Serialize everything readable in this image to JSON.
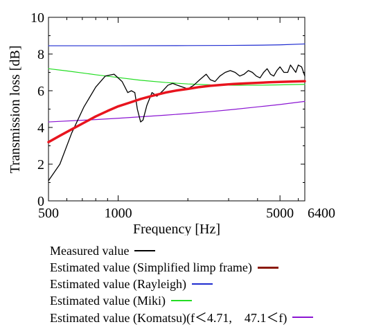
{
  "chart_data": {
    "type": "line",
    "xlabel": "Frequency [Hz]",
    "ylabel": "Transmission loss [dB]",
    "x_scale": "log",
    "xlim": [
      500,
      6400
    ],
    "ylim": [
      0,
      10
    ],
    "x_ticks": [
      500,
      1000,
      5000,
      6400
    ],
    "x_tick_labels": [
      "500",
      "1000",
      "5000",
      "6400"
    ],
    "y_ticks": [
      0,
      2,
      4,
      6,
      8,
      10
    ],
    "y_tick_labels": [
      "0",
      "2",
      "4",
      "6",
      "8",
      "10"
    ],
    "grid": false,
    "legend_position": "below",
    "series": [
      {
        "name": "Measured value",
        "color": "#000000",
        "x": [
          500,
          560,
          630,
          710,
          800,
          880,
          960,
          1040,
          1100,
          1140,
          1180,
          1210,
          1250,
          1280,
          1330,
          1400,
          1470,
          1560,
          1640,
          1720,
          1800,
          1900,
          2000,
          2120,
          2250,
          2400,
          2500,
          2620,
          2750,
          2900,
          3050,
          3200,
          3350,
          3500,
          3650,
          3800,
          3950,
          4100,
          4250,
          4400,
          4550,
          4700,
          4850,
          5000,
          5200,
          5400,
          5550,
          5700,
          5850,
          6000,
          6200,
          6400
        ],
        "values": [
          1.1,
          2.0,
          3.7,
          5.1,
          6.2,
          6.8,
          6.9,
          6.5,
          5.9,
          6.0,
          5.9,
          5.0,
          4.3,
          4.4,
          5.2,
          5.9,
          5.7,
          6.0,
          6.3,
          6.4,
          6.3,
          6.2,
          6.1,
          6.3,
          6.6,
          6.9,
          6.6,
          6.5,
          6.8,
          7.0,
          7.1,
          7.0,
          6.8,
          6.9,
          7.1,
          7.0,
          6.8,
          6.7,
          7.0,
          7.2,
          6.9,
          6.8,
          7.1,
          7.3,
          7.0,
          7.0,
          7.4,
          7.2,
          7.0,
          7.4,
          7.3,
          6.8
        ]
      },
      {
        "name": "Estimated value (Simplified limp frame)",
        "color": "#e8141e",
        "legend_color": "#8b1a0a",
        "x": [
          500,
          560,
          630,
          710,
          800,
          900,
          1000,
          1120,
          1250,
          1400,
          1600,
          1800,
          2000,
          2240,
          2500,
          2800,
          3150,
          3550,
          4000,
          4500,
          5000,
          5600,
          6400
        ],
        "values": [
          3.2,
          3.55,
          3.9,
          4.25,
          4.6,
          4.9,
          5.15,
          5.35,
          5.55,
          5.72,
          5.9,
          6.02,
          6.1,
          6.2,
          6.27,
          6.32,
          6.37,
          6.4,
          6.43,
          6.46,
          6.48,
          6.5,
          6.52
        ]
      },
      {
        "name": "Estimated value (Rayleigh)",
        "color": "#1e2bd0",
        "x": [
          500,
          1000,
          2000,
          3000,
          4000,
          5000,
          6400
        ],
        "values": [
          8.45,
          8.45,
          8.46,
          8.47,
          8.48,
          8.5,
          8.55
        ]
      },
      {
        "name": "Estimated value (Miki)",
        "color": "#22dd22",
        "x": [
          500,
          600,
          700,
          800,
          1000,
          1250,
          1600,
          2000,
          2500,
          3150,
          4000,
          5000,
          6400
        ],
        "values": [
          7.2,
          7.08,
          6.97,
          6.87,
          6.72,
          6.57,
          6.45,
          6.37,
          6.32,
          6.3,
          6.3,
          6.32,
          6.35
        ]
      },
      {
        "name": "Estimated value (Komatsu)(f＜4.71,　47.1＜f)",
        "color": "#8a14d2",
        "x": [
          500,
          800,
          1000,
          1250,
          1600,
          2000,
          2500,
          3150,
          4000,
          5000,
          6400
        ],
        "values": [
          4.3,
          4.43,
          4.5,
          4.58,
          4.67,
          4.76,
          4.86,
          4.98,
          5.12,
          5.25,
          5.42
        ]
      }
    ]
  }
}
